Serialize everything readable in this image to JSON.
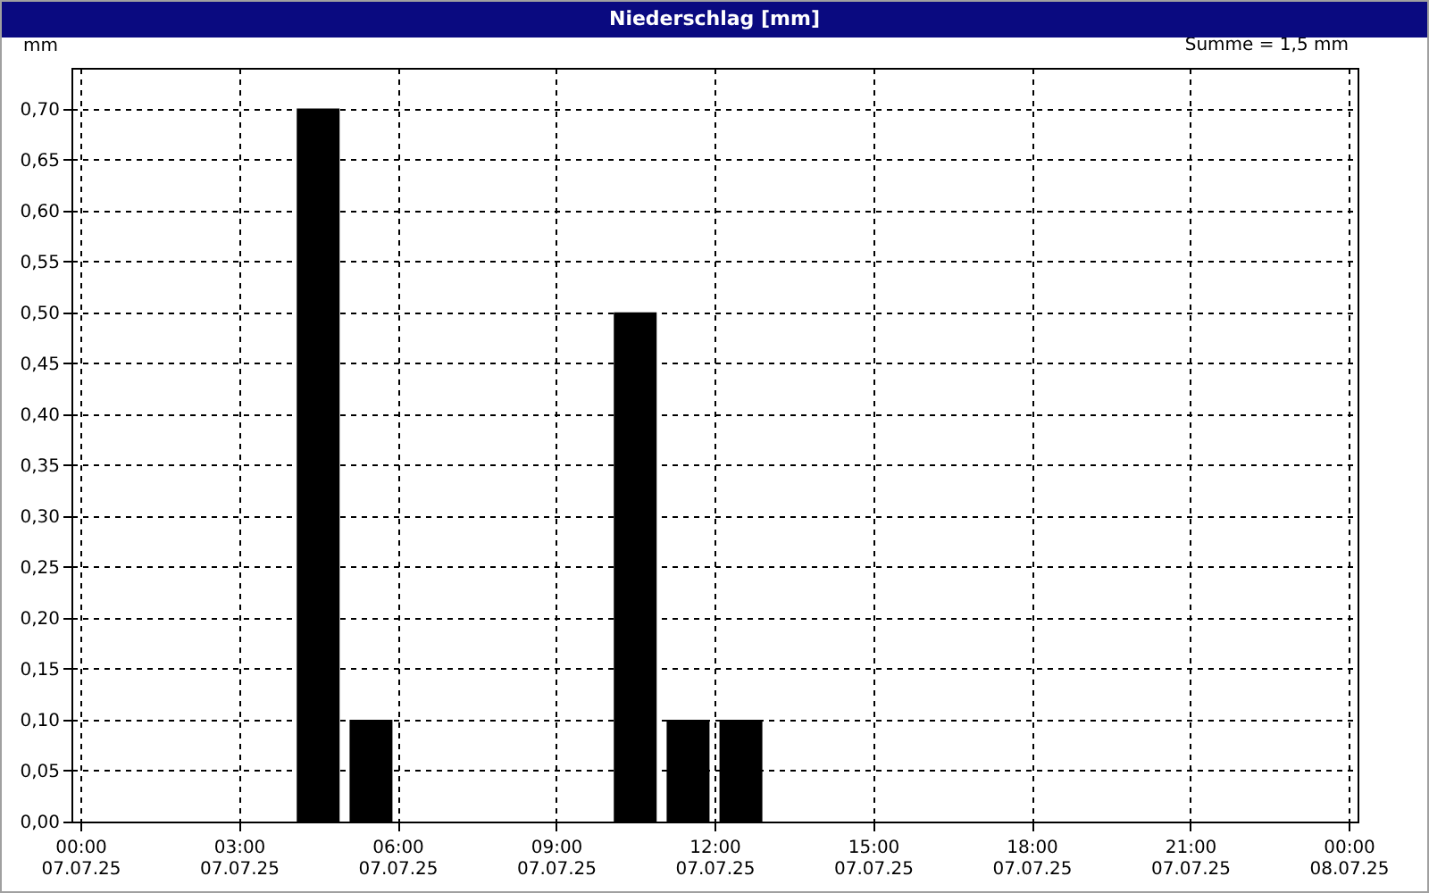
{
  "chart_data": {
    "type": "bar",
    "title": "Niederschlag [mm]",
    "ylabel": "mm",
    "annotations": [
      "Summe = 1,5 mm"
    ],
    "x": [
      "--07-07T04:30",
      "--07-07T05:30",
      "--07-07T10:30",
      "--07-07T11:30",
      "--07-07T12:30"
    ],
    "series": [
      {
        "color": "#000000",
        "values": [
          0.7,
          0.1,
          0.5,
          0.1,
          0.1
        ]
      }
    ],
    "xlim": [
      "--07-07T00:00",
      "--07-08T00:00"
    ],
    "xticks": [
      {
        "value": "--07-07T00:00",
        "label": "00:00\n07.07.25"
      },
      {
        "value": "--07-07T03:00",
        "label": "03:00\n07.07.25"
      },
      {
        "value": "--07-07T06:00",
        "label": "06:00\n07.07.25"
      },
      {
        "value": "--07-07T09:00",
        "label": "09:00\n07.07.25"
      },
      {
        "value": "--07-07T12:00",
        "label": "12:00\n07.07.25"
      },
      {
        "value": "--07-07T15:00",
        "label": "15:00\n07.07.25"
      },
      {
        "value": "--07-07T18:00",
        "label": "18:00\n07.07.25"
      },
      {
        "value": "--07-07T21:00",
        "label": "21:00\n07.07.25"
      },
      {
        "value": "--07-08T00:00",
        "label": "00:00\n08.07.25"
      }
    ],
    "ylim": [
      0,
      0.74
    ],
    "yticks": [
      {
        "value": 0,
        "label": "0,00"
      },
      {
        "value": 0.05,
        "label": "0,05"
      },
      {
        "value": 0.1,
        "label": "0,10"
      },
      {
        "value": 0.15,
        "label": "0,15"
      },
      {
        "value": 0.2,
        "label": "0,20"
      },
      {
        "value": 0.25,
        "label": "0,25"
      },
      {
        "value": 0.3,
        "label": "0,30"
      },
      {
        "value": 0.35,
        "label": "0,35"
      },
      {
        "value": 0.4,
        "label": "0,40"
      },
      {
        "value": 0.45,
        "label": "0,45"
      },
      {
        "value": 0.5,
        "label": "0,50"
      },
      {
        "value": 0.55,
        "label": "0,55"
      },
      {
        "value": 0.6,
        "label": "0,60"
      },
      {
        "value": 0.65,
        "label": "0,65"
      },
      {
        "value": 0.7,
        "label": "0,70"
      }
    ],
    "grid": true,
    "line_style": "dashed"
  }
}
